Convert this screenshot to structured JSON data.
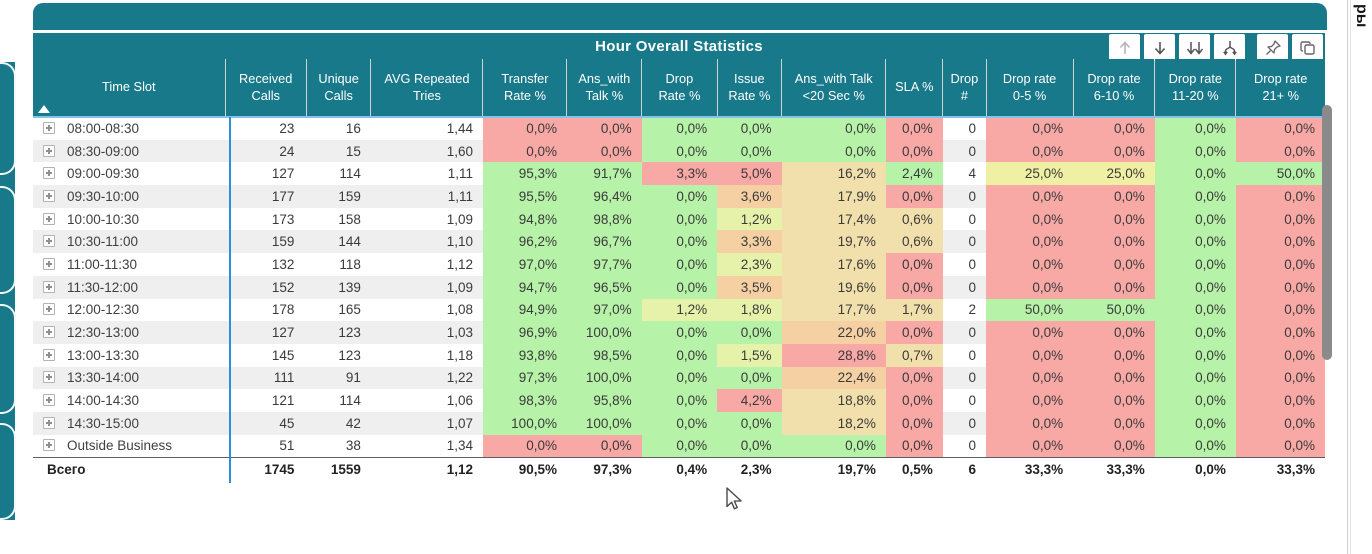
{
  "title": "Hour Overall Statistics",
  "side_panel": {
    "vertical_text": "ры"
  },
  "toolbar": {
    "buttons": [
      {
        "icon": "arrow-up-icon",
        "state": "disabled"
      },
      {
        "icon": "arrow-down-icon",
        "state": "enabled"
      },
      {
        "icon": "double-arrow-down-icon",
        "state": "enabled"
      },
      {
        "icon": "expand-hierarchy-icon",
        "state": "enabled"
      },
      {
        "icon": "pin-icon",
        "state": "enabled"
      },
      {
        "icon": "copy-icon",
        "state": "enabled"
      }
    ]
  },
  "colors": {
    "teal": "#17798a",
    "green": "#b6f2a8",
    "red": "#f8a8a5",
    "yellow": "#f0f0a4",
    "light_yellow_green": "#e6f1aa",
    "tan": "#f1dfac",
    "orange": "#f4d0a3",
    "header_underline": "#85c2ea",
    "frozen_line": "#2b90d9"
  },
  "chart_data": {
    "type": "table",
    "title": "Hour Overall Statistics",
    "columns": [
      "Time Slot",
      "Received\nCalls",
      "Unique\nCalls",
      "AVG Repeated\nTries",
      "Transfer\nRate %",
      "Ans_with\nTalk %",
      "Drop\nRate %",
      "Issue\nRate %",
      "Ans_with Talk\n<20 Sec %",
      "SLA %",
      "Drop\n#",
      "Drop rate\n0-5 %",
      "Drop rate\n6-10 %",
      "Drop rate\n11-20 %",
      "Drop rate\n21+ %"
    ],
    "rows": [
      {
        "slot": "08:00-08:30",
        "received": "23",
        "unique": "16",
        "avg": "1,44",
        "cells": [
          [
            "0,0%",
            "r"
          ],
          [
            "0,0%",
            "r"
          ],
          [
            "0,0%",
            "g"
          ],
          [
            "0,0%",
            "g"
          ],
          [
            "0,0%",
            "g"
          ],
          [
            "0,0%",
            "r"
          ],
          [
            "0",
            "w"
          ],
          [
            "0,0%",
            "r"
          ],
          [
            "0,0%",
            "r"
          ],
          [
            "0,0%",
            "g"
          ],
          [
            "0,0%",
            "r"
          ]
        ]
      },
      {
        "slot": "08:30-09:00",
        "received": "24",
        "unique": "15",
        "avg": "1,60",
        "cells": [
          [
            "0,0%",
            "r"
          ],
          [
            "0,0%",
            "r"
          ],
          [
            "0,0%",
            "g"
          ],
          [
            "0,0%",
            "g"
          ],
          [
            "0,0%",
            "g"
          ],
          [
            "0,0%",
            "r"
          ],
          [
            "0",
            "w"
          ],
          [
            "0,0%",
            "r"
          ],
          [
            "0,0%",
            "r"
          ],
          [
            "0,0%",
            "g"
          ],
          [
            "0,0%",
            "r"
          ]
        ]
      },
      {
        "slot": "09:00-09:30",
        "received": "127",
        "unique": "114",
        "avg": "1,11",
        "cells": [
          [
            "95,3%",
            "g"
          ],
          [
            "91,7%",
            "g"
          ],
          [
            "3,3%",
            "r"
          ],
          [
            "5,0%",
            "r"
          ],
          [
            "16,2%",
            "t"
          ],
          [
            "2,4%",
            "g"
          ],
          [
            "4",
            "w"
          ],
          [
            "25,0%",
            "y"
          ],
          [
            "25,0%",
            "y"
          ],
          [
            "0,0%",
            "g"
          ],
          [
            "50,0%",
            "g"
          ]
        ]
      },
      {
        "slot": "09:30-10:00",
        "received": "177",
        "unique": "159",
        "avg": "1,11",
        "cells": [
          [
            "95,5%",
            "g"
          ],
          [
            "96,4%",
            "g"
          ],
          [
            "0,0%",
            "g"
          ],
          [
            "3,6%",
            "o"
          ],
          [
            "17,9%",
            "t"
          ],
          [
            "0,0%",
            "r"
          ],
          [
            "0",
            "w"
          ],
          [
            "0,0%",
            "r"
          ],
          [
            "0,0%",
            "r"
          ],
          [
            "0,0%",
            "g"
          ],
          [
            "0,0%",
            "r"
          ]
        ]
      },
      {
        "slot": "10:00-10:30",
        "received": "173",
        "unique": "158",
        "avg": "1,09",
        "cells": [
          [
            "94,8%",
            "g"
          ],
          [
            "98,8%",
            "g"
          ],
          [
            "0,0%",
            "g"
          ],
          [
            "1,2%",
            "ly"
          ],
          [
            "17,4%",
            "t"
          ],
          [
            "0,6%",
            "t"
          ],
          [
            "0",
            "w"
          ],
          [
            "0,0%",
            "r"
          ],
          [
            "0,0%",
            "r"
          ],
          [
            "0,0%",
            "g"
          ],
          [
            "0,0%",
            "r"
          ]
        ]
      },
      {
        "slot": "10:30-11:00",
        "received": "159",
        "unique": "144",
        "avg": "1,10",
        "cells": [
          [
            "96,2%",
            "g"
          ],
          [
            "96,7%",
            "g"
          ],
          [
            "0,0%",
            "g"
          ],
          [
            "3,3%",
            "o"
          ],
          [
            "19,7%",
            "t"
          ],
          [
            "0,6%",
            "t"
          ],
          [
            "0",
            "w"
          ],
          [
            "0,0%",
            "r"
          ],
          [
            "0,0%",
            "r"
          ],
          [
            "0,0%",
            "g"
          ],
          [
            "0,0%",
            "r"
          ]
        ]
      },
      {
        "slot": "11:00-11:30",
        "received": "132",
        "unique": "118",
        "avg": "1,12",
        "cells": [
          [
            "97,0%",
            "g"
          ],
          [
            "97,7%",
            "g"
          ],
          [
            "0,0%",
            "g"
          ],
          [
            "2,3%",
            "ly"
          ],
          [
            "17,6%",
            "t"
          ],
          [
            "0,0%",
            "r"
          ],
          [
            "0",
            "w"
          ],
          [
            "0,0%",
            "r"
          ],
          [
            "0,0%",
            "r"
          ],
          [
            "0,0%",
            "g"
          ],
          [
            "0,0%",
            "r"
          ]
        ]
      },
      {
        "slot": "11:30-12:00",
        "received": "152",
        "unique": "139",
        "avg": "1,09",
        "cells": [
          [
            "94,7%",
            "g"
          ],
          [
            "96,5%",
            "g"
          ],
          [
            "0,0%",
            "g"
          ],
          [
            "3,5%",
            "o"
          ],
          [
            "19,6%",
            "t"
          ],
          [
            "0,0%",
            "r"
          ],
          [
            "0",
            "w"
          ],
          [
            "0,0%",
            "r"
          ],
          [
            "0,0%",
            "r"
          ],
          [
            "0,0%",
            "g"
          ],
          [
            "0,0%",
            "r"
          ]
        ]
      },
      {
        "slot": "12:00-12:30",
        "received": "178",
        "unique": "165",
        "avg": "1,08",
        "cells": [
          [
            "94,9%",
            "g"
          ],
          [
            "97,0%",
            "g"
          ],
          [
            "1,2%",
            "ly"
          ],
          [
            "1,8%",
            "ly"
          ],
          [
            "17,7%",
            "t"
          ],
          [
            "1,7%",
            "t"
          ],
          [
            "2",
            "w"
          ],
          [
            "50,0%",
            "g"
          ],
          [
            "50,0%",
            "g"
          ],
          [
            "0,0%",
            "g"
          ],
          [
            "0,0%",
            "r"
          ]
        ]
      },
      {
        "slot": "12:30-13:00",
        "received": "127",
        "unique": "123",
        "avg": "1,03",
        "cells": [
          [
            "96,9%",
            "g"
          ],
          [
            "100,0%",
            "g"
          ],
          [
            "0,0%",
            "g"
          ],
          [
            "0,0%",
            "g"
          ],
          [
            "22,0%",
            "o"
          ],
          [
            "0,0%",
            "r"
          ],
          [
            "0",
            "w"
          ],
          [
            "0,0%",
            "r"
          ],
          [
            "0,0%",
            "r"
          ],
          [
            "0,0%",
            "g"
          ],
          [
            "0,0%",
            "r"
          ]
        ]
      },
      {
        "slot": "13:00-13:30",
        "received": "145",
        "unique": "123",
        "avg": "1,18",
        "cells": [
          [
            "93,8%",
            "g"
          ],
          [
            "98,5%",
            "g"
          ],
          [
            "0,0%",
            "g"
          ],
          [
            "1,5%",
            "ly"
          ],
          [
            "28,8%",
            "r"
          ],
          [
            "0,7%",
            "t"
          ],
          [
            "0",
            "w"
          ],
          [
            "0,0%",
            "r"
          ],
          [
            "0,0%",
            "r"
          ],
          [
            "0,0%",
            "g"
          ],
          [
            "0,0%",
            "r"
          ]
        ]
      },
      {
        "slot": "13:30-14:00",
        "received": "111",
        "unique": "91",
        "avg": "1,22",
        "cells": [
          [
            "97,3%",
            "g"
          ],
          [
            "100,0%",
            "g"
          ],
          [
            "0,0%",
            "g"
          ],
          [
            "0,0%",
            "g"
          ],
          [
            "22,4%",
            "o"
          ],
          [
            "0,0%",
            "r"
          ],
          [
            "0",
            "w"
          ],
          [
            "0,0%",
            "r"
          ],
          [
            "0,0%",
            "r"
          ],
          [
            "0,0%",
            "g"
          ],
          [
            "0,0%",
            "r"
          ]
        ]
      },
      {
        "slot": "14:00-14:30",
        "received": "121",
        "unique": "114",
        "avg": "1,06",
        "cells": [
          [
            "98,3%",
            "g"
          ],
          [
            "95,8%",
            "g"
          ],
          [
            "0,0%",
            "g"
          ],
          [
            "4,2%",
            "r"
          ],
          [
            "18,8%",
            "t"
          ],
          [
            "0,0%",
            "r"
          ],
          [
            "0",
            "w"
          ],
          [
            "0,0%",
            "r"
          ],
          [
            "0,0%",
            "r"
          ],
          [
            "0,0%",
            "g"
          ],
          [
            "0,0%",
            "r"
          ]
        ]
      },
      {
        "slot": "14:30-15:00",
        "received": "45",
        "unique": "42",
        "avg": "1,07",
        "cells": [
          [
            "100,0%",
            "g"
          ],
          [
            "100,0%",
            "g"
          ],
          [
            "0,0%",
            "g"
          ],
          [
            "0,0%",
            "g"
          ],
          [
            "18,2%",
            "t"
          ],
          [
            "0,0%",
            "r"
          ],
          [
            "0",
            "w"
          ],
          [
            "0,0%",
            "r"
          ],
          [
            "0,0%",
            "r"
          ],
          [
            "0,0%",
            "g"
          ],
          [
            "0,0%",
            "r"
          ]
        ]
      },
      {
        "slot": "Outside Business",
        "received": "51",
        "unique": "38",
        "avg": "1,34",
        "cells": [
          [
            "0,0%",
            "r"
          ],
          [
            "0,0%",
            "r"
          ],
          [
            "0,0%",
            "g"
          ],
          [
            "0,0%",
            "g"
          ],
          [
            "0,0%",
            "g"
          ],
          [
            "0,0%",
            "r"
          ],
          [
            "0",
            "w"
          ],
          [
            "0,0%",
            "r"
          ],
          [
            "0,0%",
            "r"
          ],
          [
            "0,0%",
            "g"
          ],
          [
            "0,0%",
            "r"
          ]
        ]
      }
    ],
    "total": {
      "label": "Всего",
      "received": "1745",
      "unique": "1559",
      "avg": "1,12",
      "cells": [
        [
          "90,5%",
          "w"
        ],
        [
          "97,3%",
          "w"
        ],
        [
          "0,4%",
          "w"
        ],
        [
          "2,3%",
          "w"
        ],
        [
          "19,7%",
          "w"
        ],
        [
          "0,5%",
          "w"
        ],
        [
          "6",
          "w"
        ],
        [
          "33,3%",
          "w"
        ],
        [
          "33,3%",
          "w"
        ],
        [
          "0,0%",
          "w"
        ],
        [
          "33,3%",
          "w"
        ]
      ]
    }
  }
}
